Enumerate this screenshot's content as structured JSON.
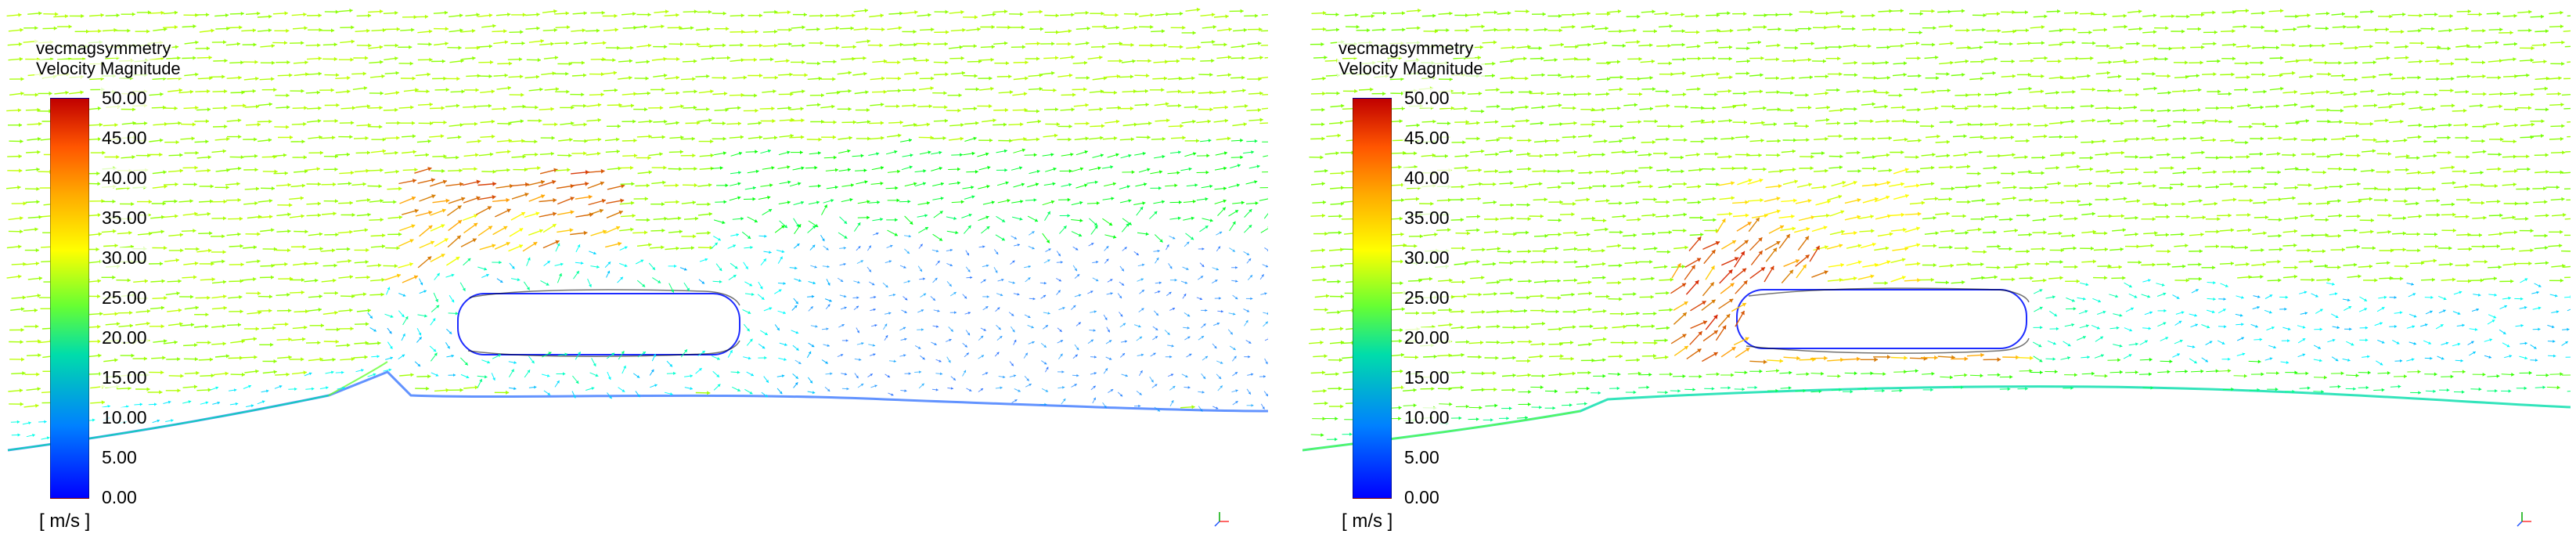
{
  "panels": [
    {
      "legend": {
        "title_line1": "vecmagsymmetry",
        "title_line2": "Velocity Magnitude",
        "ticks": [
          "50.00",
          "45.00",
          "40.00",
          "35.00",
          "30.00",
          "25.00",
          "20.00",
          "15.00",
          "10.00",
          "5.00",
          "0.00"
        ],
        "units": "[ m/s ]"
      }
    },
    {
      "legend": {
        "title_line1": "vecmagsymmetry",
        "title_line2": "Velocity Magnitude",
        "ticks": [
          "50.00",
          "45.00",
          "40.00",
          "35.00",
          "30.00",
          "25.00",
          "20.00",
          "15.00",
          "10.00",
          "5.00",
          "0.00"
        ],
        "units": "[ m/s ]"
      }
    }
  ]
}
